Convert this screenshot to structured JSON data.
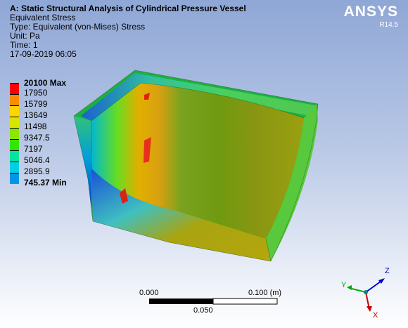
{
  "header": {
    "title": "A: Static Structural Analysis of Cylindrical Pressure Vessel",
    "result": "Equivalent Stress",
    "type": "Type: Equivalent (von-Mises) Stress",
    "unit": "Unit: Pa",
    "time": "Time: 1",
    "date": "17-09-2019 06:05"
  },
  "brand": {
    "name": "ANSYS",
    "version": "R14.5"
  },
  "legend": {
    "max": "20100 Max",
    "values": [
      "17950",
      "15799",
      "13649",
      "11498",
      "9347.5",
      "7197",
      "5046.4",
      "2895.9"
    ],
    "min": "745.37 Min",
    "colors": [
      "#ff0000",
      "#ff8c00",
      "#ffd400",
      "#d7e600",
      "#8ee600",
      "#33e600",
      "#00e69c",
      "#00cfe6",
      "#0096e6",
      "#0000ff"
    ]
  },
  "scale_bar": {
    "start": "0.000",
    "end": "0.100 (m)",
    "mid": "0.050"
  },
  "triad": {
    "z": "Z",
    "y": "Y",
    "x": "X",
    "colors": {
      "z": "#0000cc",
      "y": "#00aa00",
      "x": "#cc0000"
    }
  }
}
